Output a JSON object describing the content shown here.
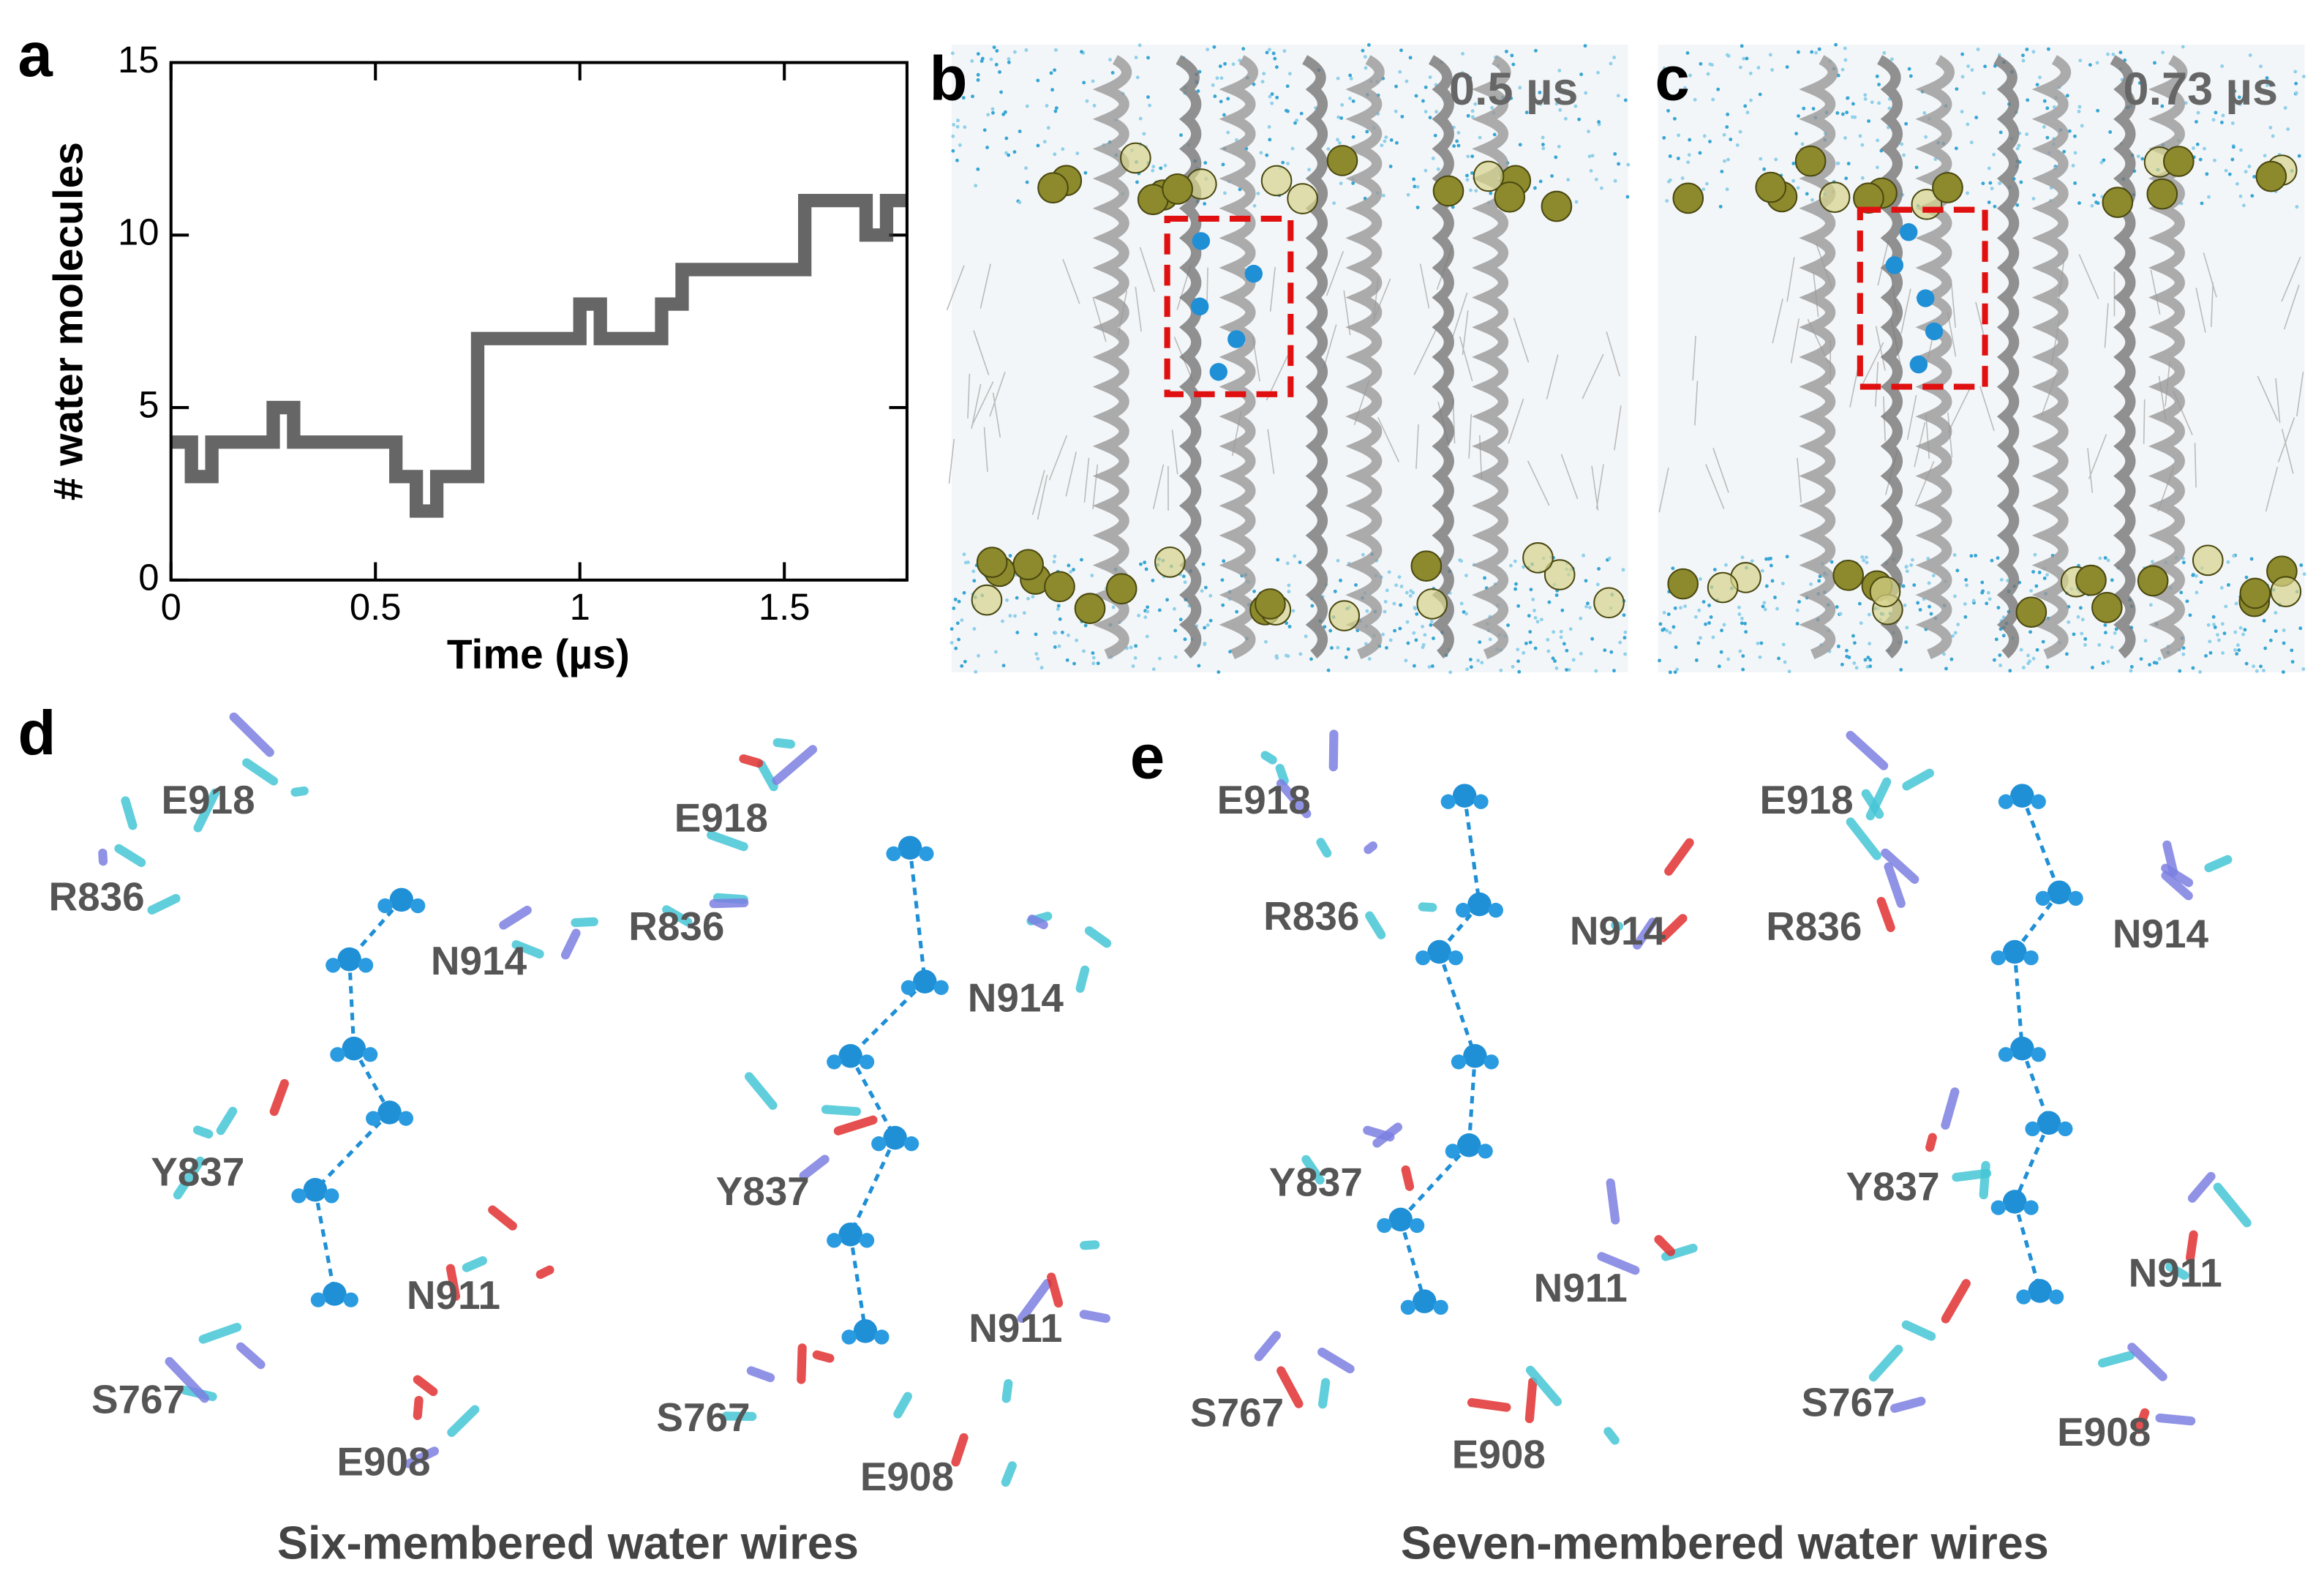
{
  "chart_data": {
    "type": "line",
    "panel_label": "a",
    "x_label": "Time (µs)",
    "y_label": "# water molecules",
    "x": [
      0,
      0.05,
      0.1,
      0.15,
      0.2,
      0.25,
      0.3,
      0.35,
      0.4,
      0.45,
      0.5,
      0.55,
      0.6,
      0.65,
      0.7,
      0.75,
      0.8,
      0.85,
      0.9,
      0.95,
      1.0,
      1.05,
      1.1,
      1.15,
      1.2,
      1.25,
      1.3,
      1.35,
      1.4,
      1.45,
      1.5,
      1.55,
      1.6,
      1.65,
      1.7,
      1.75,
      1.8
    ],
    "series": [
      {
        "color": "#333333",
        "values": [
          4,
          3,
          4,
          4,
          4,
          5,
          4,
          4,
          4,
          4,
          4,
          3,
          2,
          3,
          3,
          7,
          7,
          7,
          7,
          7,
          8,
          7,
          7,
          7,
          8,
          9,
          9,
          9,
          9,
          9,
          9,
          11,
          11,
          11,
          10,
          11,
          11
        ]
      }
    ],
    "xlim": [
      0,
      1.8
    ],
    "ylim": [
      0,
      15
    ],
    "xticks": [
      0,
      0.5,
      1,
      1.5
    ],
    "yticks": [
      0,
      5,
      10,
      15
    ]
  },
  "panels": {
    "b": {
      "label": "b",
      "time": "0.5 µs"
    },
    "c": {
      "label": "c",
      "time": "0.73 µs"
    },
    "d": {
      "label": "d",
      "caption": "Six-membered water wires",
      "structures": [
        {
          "residues": [
            "E918",
            "R836",
            "N914",
            "Y837",
            "N911",
            "S767",
            "E908"
          ]
        },
        {
          "residues": [
            "E918",
            "R836",
            "N914",
            "Y837",
            "N911",
            "S767",
            "E908"
          ]
        }
      ]
    },
    "e": {
      "label": "e",
      "caption": "Seven-membered water wires",
      "structures": [
        {
          "residues": [
            "E918",
            "R836",
            "N914",
            "Y837",
            "N911",
            "S767",
            "E908"
          ]
        },
        {
          "residues": [
            "E918",
            "R836",
            "N914",
            "Y837",
            "N911",
            "S767",
            "E908"
          ]
        }
      ]
    }
  }
}
